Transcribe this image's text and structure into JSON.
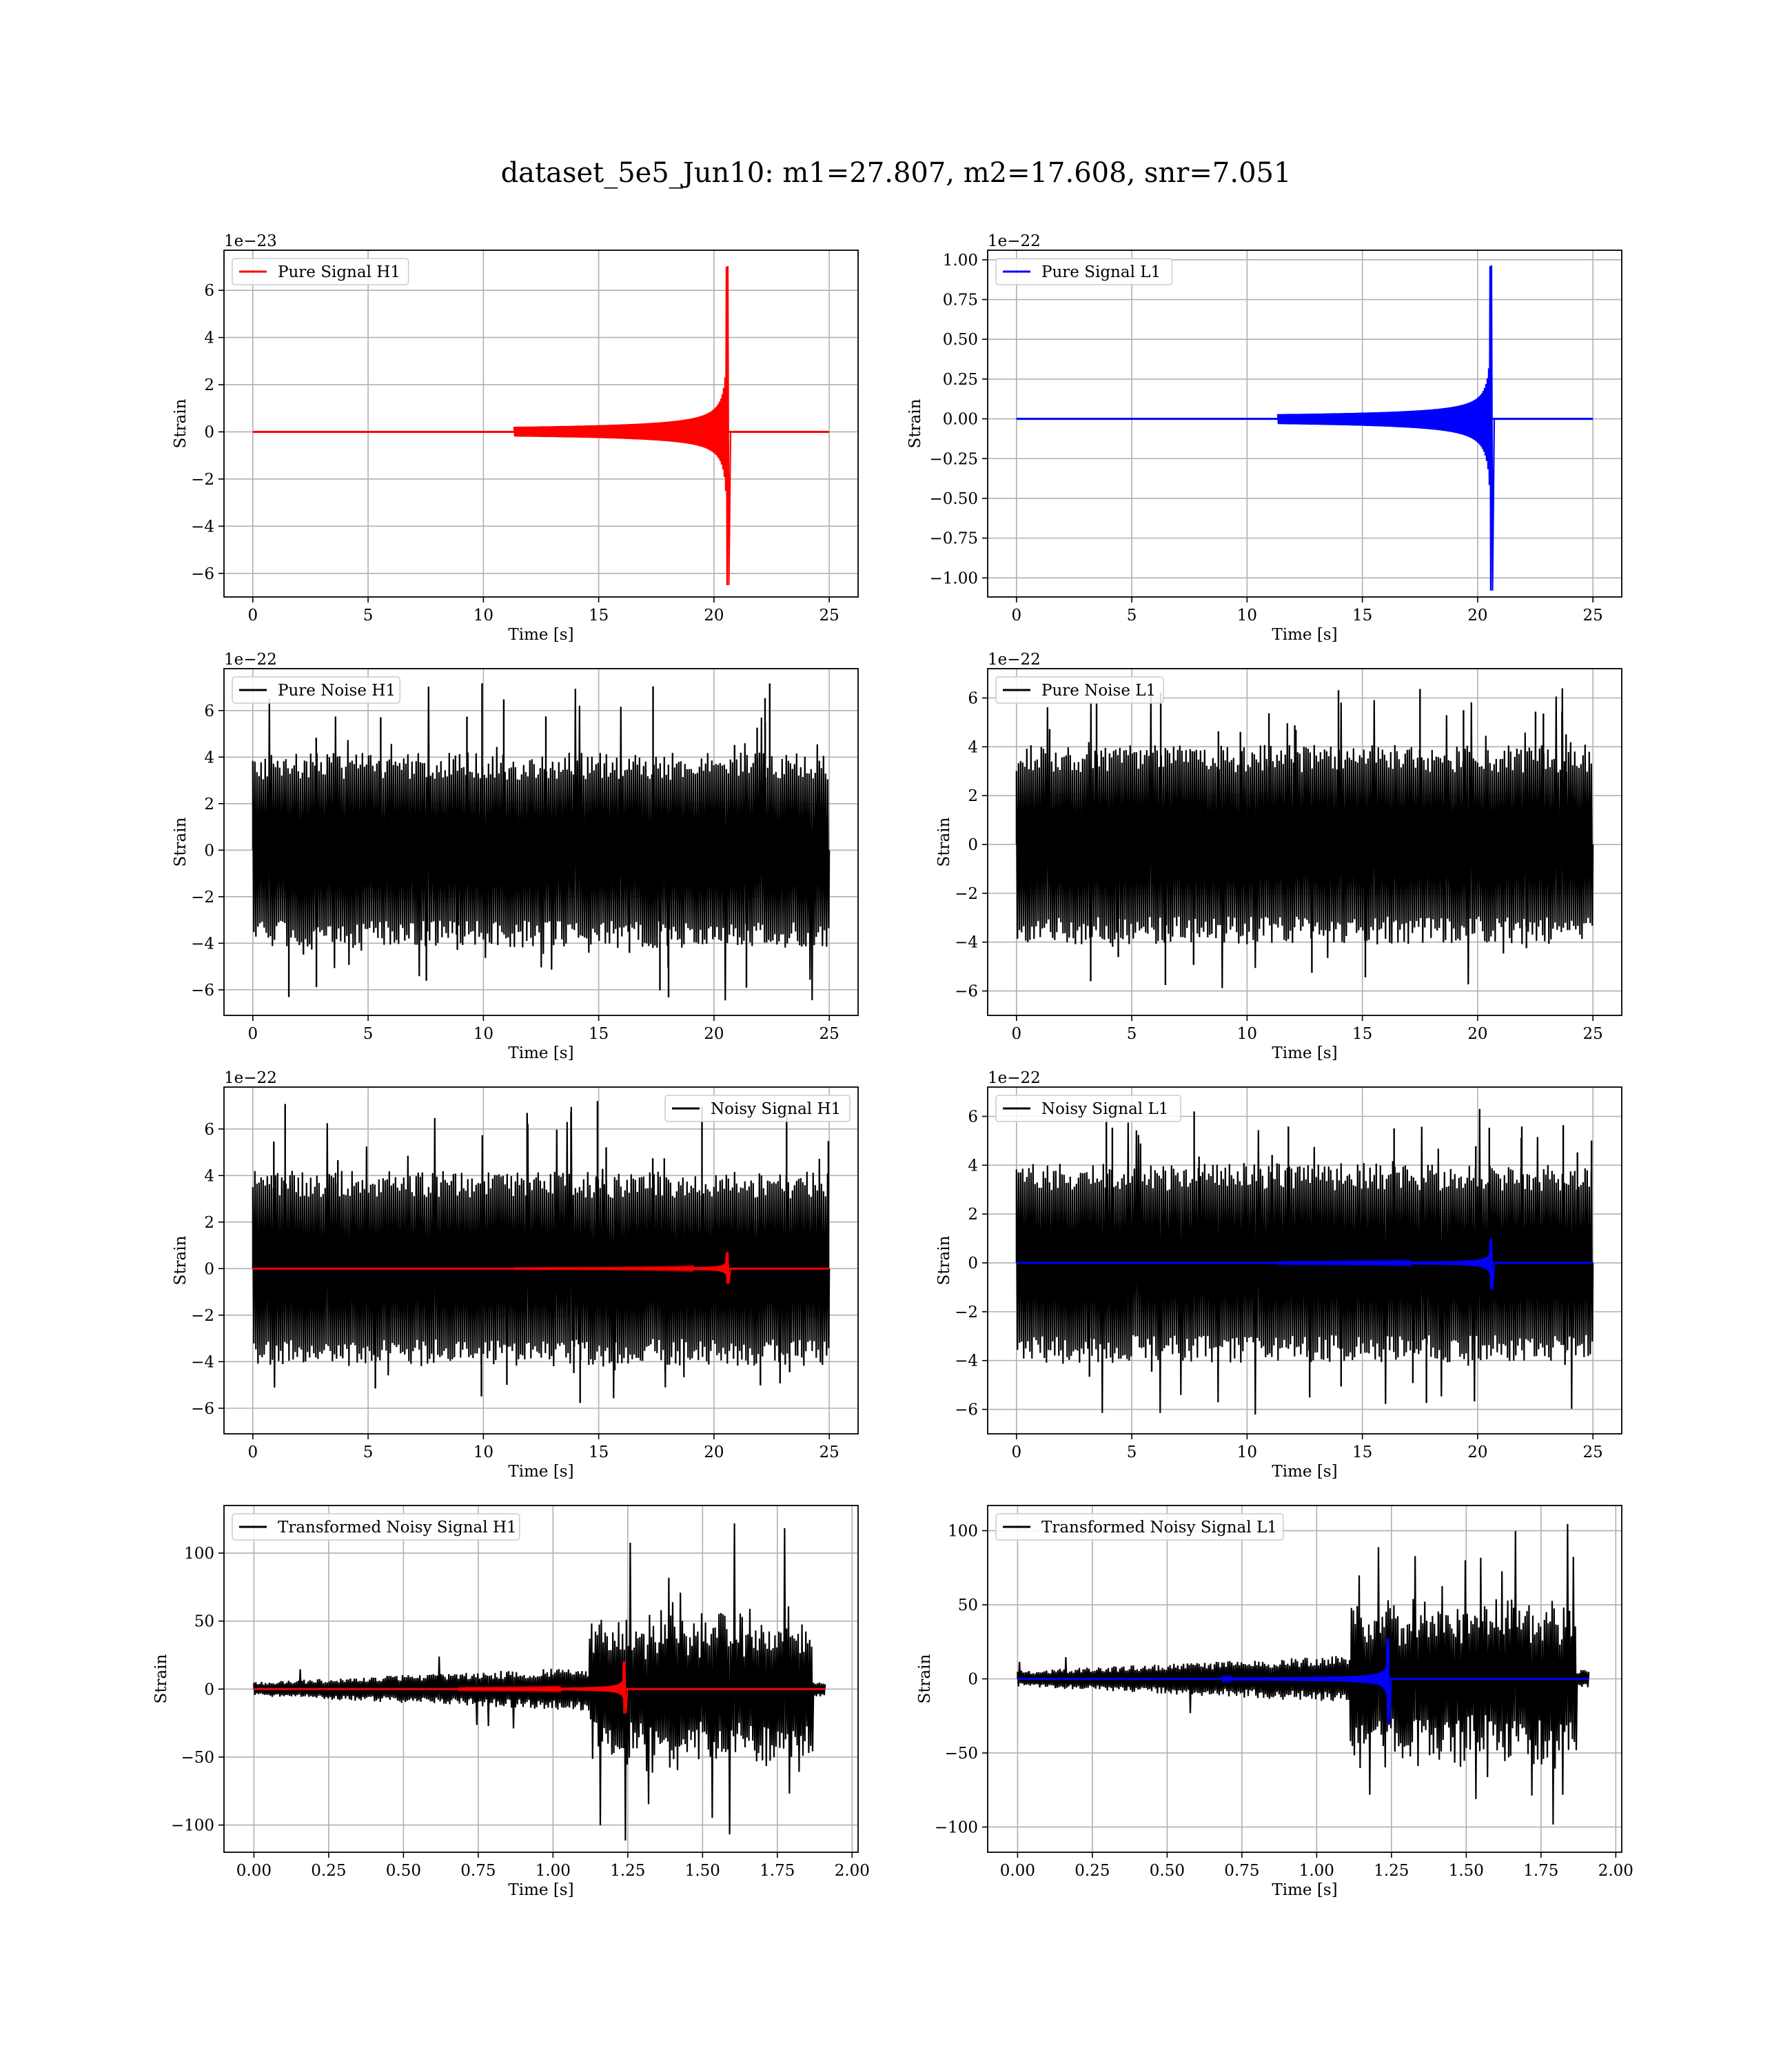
{
  "figure": {
    "title": "dataset_5e5_Jun10: m1=27.807, m2=17.608, snr=7.051"
  },
  "chart_data": [
    {
      "type": "line",
      "title": "",
      "xlabel": "Time [s]",
      "ylabel": "Strain",
      "offset_label": "1e−23",
      "xlim": [
        -1.25,
        26.25
      ],
      "ylim": [
        -7.0,
        7.7
      ],
      "xticks": [
        0,
        5,
        10,
        15,
        20,
        25
      ],
      "xtick_labels": [
        "0",
        "5",
        "10",
        "15",
        "20",
        "25"
      ],
      "yticks": [
        -6,
        -4,
        -2,
        0,
        2,
        4,
        6
      ],
      "ytick_labels": [
        "−6",
        "−4",
        "−2",
        "0",
        "2",
        "4",
        "6"
      ],
      "grid": true,
      "legend_position": "upper-left",
      "series": [
        {
          "name": "Pure Signal H1",
          "color": "#ff0000",
          "kind": "chirp",
          "t_start": 0,
          "t_end": 25,
          "t_merger": 20.6,
          "peak_pos": 7.0,
          "peak_neg": -6.5,
          "level": 0
        }
      ]
    },
    {
      "type": "line",
      "title": "",
      "xlabel": "Time [s]",
      "ylabel": "Strain",
      "offset_label": "1e−22",
      "xlim": [
        -1.25,
        26.25
      ],
      "ylim": [
        -1.12,
        1.06
      ],
      "xticks": [
        0,
        5,
        10,
        15,
        20,
        25
      ],
      "xtick_labels": [
        "0",
        "5",
        "10",
        "15",
        "20",
        "25"
      ],
      "yticks": [
        -1.0,
        -0.75,
        -0.5,
        -0.25,
        0.0,
        0.25,
        0.5,
        0.75,
        1.0
      ],
      "ytick_labels": [
        "−1.00",
        "−0.75",
        "−0.50",
        "−0.25",
        "0.00",
        "0.25",
        "0.50",
        "0.75",
        "1.00"
      ],
      "grid": true,
      "legend_position": "upper-left",
      "series": [
        {
          "name": "Pure Signal L1",
          "color": "#0000ff",
          "kind": "chirp",
          "t_start": 0,
          "t_end": 25,
          "t_merger": 20.6,
          "peak_pos": 0.96,
          "peak_neg": -1.08,
          "level": 0
        }
      ]
    },
    {
      "type": "line",
      "title": "",
      "xlabel": "Time [s]",
      "ylabel": "Strain",
      "offset_label": "1e−22",
      "xlim": [
        -1.25,
        26.25
      ],
      "ylim": [
        -7.1,
        7.8
      ],
      "xticks": [
        0,
        5,
        10,
        15,
        20,
        25
      ],
      "xtick_labels": [
        "0",
        "5",
        "10",
        "15",
        "20",
        "25"
      ],
      "yticks": [
        -6,
        -4,
        -2,
        0,
        2,
        4,
        6
      ],
      "ytick_labels": [
        "−6",
        "−4",
        "−2",
        "0",
        "2",
        "4",
        "6"
      ],
      "grid": true,
      "legend_position": "upper-left",
      "series": [
        {
          "name": "Pure Noise H1",
          "color": "#000000",
          "kind": "noise",
          "t_start": 0,
          "t_end": 25,
          "upper": 4.2,
          "lower": -4.2,
          "peak_pos": 7.2,
          "peak_neg": -6.5
        }
      ]
    },
    {
      "type": "line",
      "title": "",
      "xlabel": "Time [s]",
      "ylabel": "Strain",
      "offset_label": "1e−22",
      "xlim": [
        -1.25,
        26.25
      ],
      "ylim": [
        -7.0,
        7.2
      ],
      "xticks": [
        0,
        5,
        10,
        15,
        20,
        25
      ],
      "xtick_labels": [
        "0",
        "5",
        "10",
        "15",
        "20",
        "25"
      ],
      "yticks": [
        -6,
        -4,
        -2,
        0,
        2,
        4,
        6
      ],
      "ytick_labels": [
        "−6",
        "−4",
        "−2",
        "0",
        "2",
        "4",
        "6"
      ],
      "grid": true,
      "legend_position": "upper-left",
      "series": [
        {
          "name": "Pure Noise L1",
          "color": "#000000",
          "kind": "noise",
          "t_start": 0,
          "t_end": 25,
          "upper": 4.1,
          "lower": -4.1,
          "peak_pos": 6.4,
          "peak_neg": -6.3
        }
      ]
    },
    {
      "type": "line",
      "title": "",
      "xlabel": "Time [s]",
      "ylabel": "Strain",
      "offset_label": "1e−22",
      "xlim": [
        -1.25,
        26.25
      ],
      "ylim": [
        -7.1,
        7.8
      ],
      "xticks": [
        0,
        5,
        10,
        15,
        20,
        25
      ],
      "xtick_labels": [
        "0",
        "5",
        "10",
        "15",
        "20",
        "25"
      ],
      "yticks": [
        -6,
        -4,
        -2,
        0,
        2,
        4,
        6
      ],
      "ytick_labels": [
        "−6",
        "−4",
        "−2",
        "0",
        "2",
        "4",
        "6"
      ],
      "grid": true,
      "legend_position": "upper-right",
      "series": [
        {
          "name": "Noisy Signal H1",
          "color": "#000000",
          "kind": "noise",
          "t_start": 0,
          "t_end": 25,
          "upper": 4.2,
          "lower": -4.2,
          "peak_pos": 7.2,
          "peak_neg": -6.5
        },
        {
          "name": "",
          "color": "#ff0000",
          "kind": "chirp",
          "t_start": 0,
          "t_end": 25,
          "t_merger": 20.6,
          "peak_pos": 0.7,
          "peak_neg": -0.65,
          "level": 0
        }
      ]
    },
    {
      "type": "line",
      "title": "",
      "xlabel": "Time [s]",
      "ylabel": "Strain",
      "offset_label": "1e−22",
      "xlim": [
        -1.25,
        26.25
      ],
      "ylim": [
        -7.0,
        7.2
      ],
      "xticks": [
        0,
        5,
        10,
        15,
        20,
        25
      ],
      "xtick_labels": [
        "0",
        "5",
        "10",
        "15",
        "20",
        "25"
      ],
      "yticks": [
        -6,
        -4,
        -2,
        0,
        2,
        4,
        6
      ],
      "ytick_labels": [
        "−6",
        "−4",
        "−2",
        "0",
        "2",
        "4",
        "6"
      ],
      "grid": true,
      "legend_position": "upper-left",
      "series": [
        {
          "name": "Noisy Signal L1",
          "color": "#000000",
          "kind": "noise",
          "t_start": 0,
          "t_end": 25,
          "upper": 4.1,
          "lower": -4.1,
          "peak_pos": 6.4,
          "peak_neg": -6.3
        },
        {
          "name": "",
          "color": "#0000ff",
          "kind": "chirp",
          "t_start": 0,
          "t_end": 25,
          "t_merger": 20.6,
          "peak_pos": 0.96,
          "peak_neg": -1.08,
          "level": 0
        }
      ]
    },
    {
      "type": "line",
      "title": "",
      "xlabel": "Time [s]",
      "ylabel": "Strain",
      "offset_label": "",
      "xlim": [
        -0.1,
        2.02
      ],
      "ylim": [
        -120,
        135
      ],
      "xticks": [
        0.0,
        0.25,
        0.5,
        0.75,
        1.0,
        1.25,
        1.5,
        1.75,
        2.0
      ],
      "xtick_labels": [
        "0.00",
        "0.25",
        "0.50",
        "0.75",
        "1.00",
        "1.25",
        "1.50",
        "1.75",
        "2.00"
      ],
      "yticks": [
        -100,
        -50,
        0,
        50,
        100
      ],
      "ytick_labels": [
        "−100",
        "−50",
        "0",
        "50",
        "100"
      ],
      "grid": true,
      "legend_position": "upper-left",
      "series": [
        {
          "name": "Transformed Noisy Signal H1",
          "color": "#000000",
          "kind": "transformed",
          "t_start": 0,
          "t_end": 1.91,
          "t_jump": 1.12,
          "t_drop": 1.87,
          "low_amp": 12,
          "high_upper": 65,
          "high_lower": -65,
          "peak_pos": 125,
          "peak_neg": -112
        },
        {
          "name": "",
          "color": "#ff0000",
          "kind": "chirp",
          "t_start": 0,
          "t_end": 1.91,
          "t_merger": 1.24,
          "peak_pos": 20,
          "peak_neg": -18,
          "level": 0
        }
      ]
    },
    {
      "type": "line",
      "title": "",
      "xlabel": "Time [s]",
      "ylabel": "Strain",
      "offset_label": "",
      "xlim": [
        -0.1,
        2.02
      ],
      "ylim": [
        -117,
        117
      ],
      "xticks": [
        0.0,
        0.25,
        0.5,
        0.75,
        1.0,
        1.25,
        1.5,
        1.75,
        2.0
      ],
      "xtick_labels": [
        "0.00",
        "0.25",
        "0.50",
        "0.75",
        "1.00",
        "1.25",
        "1.50",
        "1.75",
        "2.00"
      ],
      "yticks": [
        -100,
        -50,
        0,
        50,
        100
      ],
      "ytick_labels": [
        "−100",
        "−50",
        "0",
        "50",
        "100"
      ],
      "grid": true,
      "legend_position": "upper-left",
      "series": [
        {
          "name": "Transformed Noisy Signal L1",
          "color": "#000000",
          "kind": "transformed",
          "t_start": 0,
          "t_end": 1.91,
          "t_jump": 1.11,
          "t_drop": 1.87,
          "low_amp": 12,
          "high_upper": 65,
          "high_lower": -65,
          "peak_pos": 105,
          "peak_neg": -110
        },
        {
          "name": "",
          "color": "#0000ff",
          "kind": "chirp",
          "t_start": 0,
          "t_end": 1.91,
          "t_merger": 1.24,
          "peak_pos": 27,
          "peak_neg": -30,
          "level": 0
        }
      ]
    }
  ]
}
